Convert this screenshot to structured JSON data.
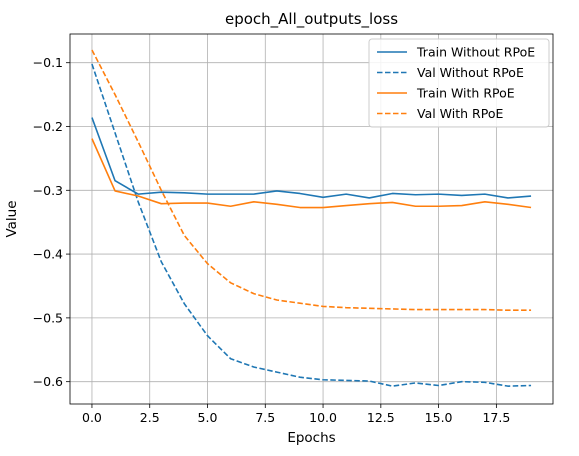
{
  "chart_data": {
    "type": "line",
    "title": "epoch_All_outputs_loss",
    "xlabel": "Epochs",
    "ylabel": "Value",
    "xlim": [
      -0.95,
      19.95
    ],
    "ylim": [
      -0.635,
      -0.055
    ],
    "xticks": [
      0.0,
      2.5,
      5.0,
      7.5,
      10.0,
      12.5,
      15.0,
      17.5
    ],
    "xtick_labels": [
      "0.0",
      "2.5",
      "5.0",
      "7.5",
      "10.0",
      "12.5",
      "15.0",
      "17.5"
    ],
    "yticks": [
      -0.1,
      -0.2,
      -0.3,
      -0.4,
      -0.5,
      -0.6
    ],
    "ytick_labels": [
      "−0.1",
      "−0.2",
      "−0.3",
      "−0.4",
      "−0.5",
      "−0.6"
    ],
    "grid": true,
    "legend_position": "top-right",
    "x": [
      0,
      1,
      2,
      3,
      4,
      5,
      6,
      7,
      8,
      9,
      10,
      11,
      12,
      13,
      14,
      15,
      16,
      17,
      18,
      19
    ],
    "series": [
      {
        "name": "Train Without RPoE",
        "color": "#1f77b4",
        "style": "solid",
        "values": [
          -0.186,
          -0.285,
          -0.306,
          -0.303,
          -0.304,
          -0.306,
          -0.306,
          -0.306,
          -0.301,
          -0.305,
          -0.311,
          -0.306,
          -0.312,
          -0.305,
          -0.307,
          -0.306,
          -0.308,
          -0.306,
          -0.312,
          -0.309
        ]
      },
      {
        "name": "Val Without RPoE",
        "color": "#1f77b4",
        "style": "dashed",
        "values": [
          -0.102,
          -0.21,
          -0.318,
          -0.412,
          -0.478,
          -0.528,
          -0.564,
          -0.577,
          -0.585,
          -0.593,
          -0.597,
          -0.598,
          -0.599,
          -0.607,
          -0.602,
          -0.606,
          -0.6,
          -0.601,
          -0.607,
          -0.606
        ]
      },
      {
        "name": "Train With RPoE",
        "color": "#ff7f0e",
        "style": "solid",
        "values": [
          -0.219,
          -0.301,
          -0.309,
          -0.321,
          -0.32,
          -0.32,
          -0.325,
          -0.318,
          -0.322,
          -0.327,
          -0.327,
          -0.324,
          -0.321,
          -0.319,
          -0.325,
          -0.325,
          -0.324,
          -0.318,
          -0.322,
          -0.327
        ]
      },
      {
        "name": "Val With RPoE",
        "color": "#ff7f0e",
        "style": "dashed",
        "values": [
          -0.08,
          -0.15,
          -0.224,
          -0.3,
          -0.371,
          -0.415,
          -0.445,
          -0.462,
          -0.472,
          -0.477,
          -0.482,
          -0.484,
          -0.485,
          -0.486,
          -0.487,
          -0.487,
          -0.487,
          -0.487,
          -0.488,
          -0.488
        ]
      }
    ]
  }
}
